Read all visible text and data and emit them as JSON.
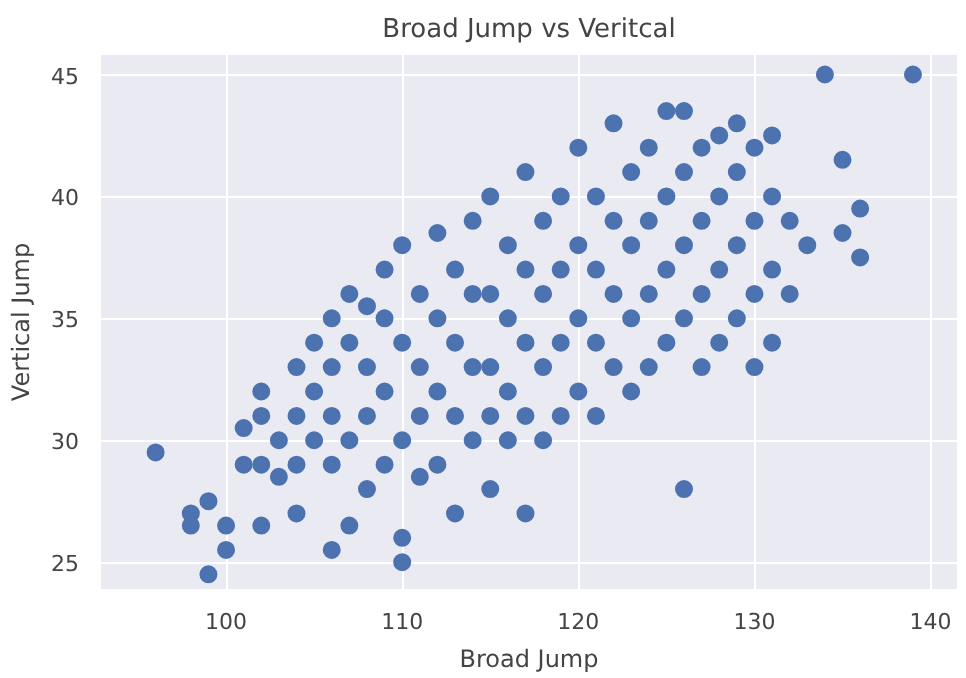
{
  "chart_data": {
    "type": "scatter",
    "title": "Broad Jump vs Veritcal",
    "xlabel": "Broad Jump",
    "ylabel": "Vertical Jump",
    "xlim": [
      92.9,
      141.5
    ],
    "ylim": [
      23.9,
      45.8
    ],
    "xticks": [
      100,
      110,
      120,
      130,
      140
    ],
    "yticks": [
      25,
      30,
      35,
      40,
      45
    ],
    "grid": true,
    "marker": "circle",
    "series": [
      {
        "color": "#4c72b0",
        "x": [
          96,
          98,
          98,
          99,
          99,
          100,
          100,
          101,
          101,
          102,
          102,
          102,
          102,
          103,
          103,
          104,
          104,
          104,
          104,
          105,
          105,
          105,
          106,
          106,
          106,
          106,
          106,
          107,
          107,
          107,
          107,
          108,
          108,
          108,
          108,
          109,
          109,
          109,
          109,
          110,
          110,
          110,
          110,
          110,
          111,
          111,
          111,
          111,
          112,
          112,
          112,
          112,
          113,
          113,
          113,
          113,
          114,
          114,
          114,
          114,
          115,
          115,
          115,
          115,
          115,
          116,
          116,
          116,
          116,
          117,
          117,
          117,
          117,
          117,
          118,
          118,
          118,
          118,
          119,
          119,
          119,
          119,
          120,
          120,
          120,
          120,
          121,
          121,
          121,
          121,
          122,
          122,
          122,
          122,
          123,
          123,
          123,
          123,
          124,
          124,
          124,
          124,
          125,
          125,
          125,
          125,
          126,
          126,
          126,
          126,
          126,
          127,
          127,
          127,
          127,
          128,
          128,
          128,
          128,
          129,
          129,
          129,
          129,
          130,
          130,
          130,
          130,
          131,
          131,
          131,
          131,
          132,
          132,
          133,
          134,
          135,
          135,
          136,
          136,
          139
        ],
        "values": [
          29.5,
          27,
          26.5,
          27.5,
          24.5,
          26.5,
          25.5,
          30.5,
          29,
          32,
          31,
          29,
          26.5,
          28.5,
          30,
          33,
          31,
          29,
          27,
          34,
          32,
          30,
          35,
          33,
          31,
          29,
          25.5,
          36,
          34,
          30,
          26.5,
          35.5,
          33,
          31,
          28,
          37,
          35,
          32,
          29,
          38,
          34,
          30,
          26,
          25,
          36,
          33,
          31,
          28.5,
          38.5,
          35,
          32,
          29,
          37,
          34,
          31,
          27,
          39,
          36,
          33,
          30,
          40,
          36,
          33,
          31,
          28,
          38,
          35,
          32,
          30,
          41,
          37,
          34,
          31,
          27,
          39,
          36,
          33,
          30,
          40,
          37,
          34,
          31,
          42,
          38,
          35,
          32,
          40,
          37,
          34,
          31,
          43,
          39,
          36,
          33,
          41,
          38,
          35,
          32,
          42,
          39,
          36,
          33,
          43.5,
          40,
          37,
          34,
          43.5,
          41,
          38,
          35,
          28,
          42,
          39,
          36,
          33,
          42.5,
          40,
          37,
          34,
          43,
          41,
          38,
          35,
          42,
          39,
          36,
          33,
          42.5,
          40,
          37,
          34,
          39,
          36,
          38,
          45,
          41.5,
          38.5,
          39.5,
          37.5,
          45
        ]
      }
    ]
  }
}
